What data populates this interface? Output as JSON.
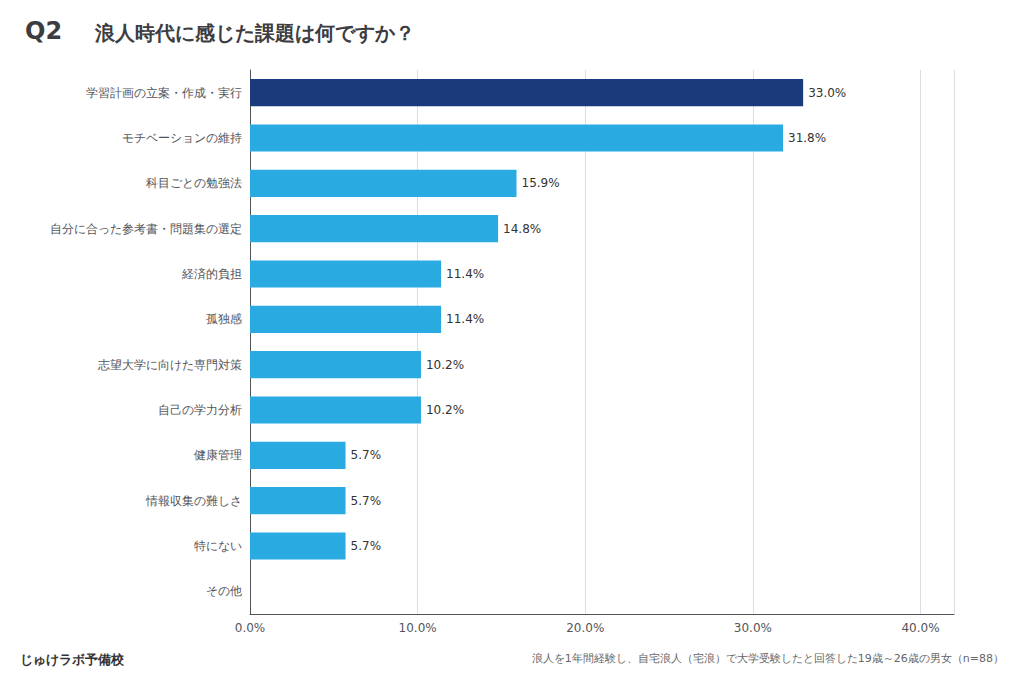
{
  "chart_data": {
    "type": "bar",
    "orientation": "horizontal",
    "title": "浪人時代に感じた課題は何ですか？",
    "annotations": [
      "Q2",
      "浪人を1年間経験し、自宅浪人（宅浪）で大学受験したと回答した19歳～26歳の男女（n=88）",
      "じゅけラボ予備校"
    ],
    "categories": [
      "学習計画の立案・作成・実行",
      "モチベーションの維持",
      "科目ごとの勉強法",
      "自分に合った参考書・問題集の選定",
      "経済的負担",
      "孤独感",
      "志望大学に向けた専門対策",
      "自己の学力分析",
      "健康管理",
      "情報収集の難しさ",
      "特にない",
      "その他"
    ],
    "values": [
      33.0,
      31.8,
      15.9,
      14.8,
      11.4,
      11.4,
      10.2,
      10.2,
      5.7,
      5.7,
      5.7,
      0.0
    ],
    "value_labels": [
      "33.0%",
      "31.8%",
      "15.9%",
      "14.8%",
      "11.4%",
      "11.4%",
      "10.2%",
      "10.2%",
      "5.7%",
      "5.7%",
      "5.7%",
      null
    ],
    "data_labels": true,
    "colors": [
      "#1a3a7c",
      "#29abe2",
      "#29abe2",
      "#29abe2",
      "#29abe2",
      "#29abe2",
      "#29abe2",
      "#29abe2",
      "#29abe2",
      "#29abe2",
      "#29abe2",
      "#29abe2"
    ],
    "xlim": [
      0,
      42
    ],
    "xticks": [
      {
        "value": 0,
        "label": "0.0%"
      },
      {
        "value": 10,
        "label": "10.0%"
      },
      {
        "value": 20,
        "label": "20.0%"
      },
      {
        "value": 30,
        "label": "30.0%"
      },
      {
        "value": 40,
        "label": "40.0%"
      }
    ],
    "grid": true
  }
}
